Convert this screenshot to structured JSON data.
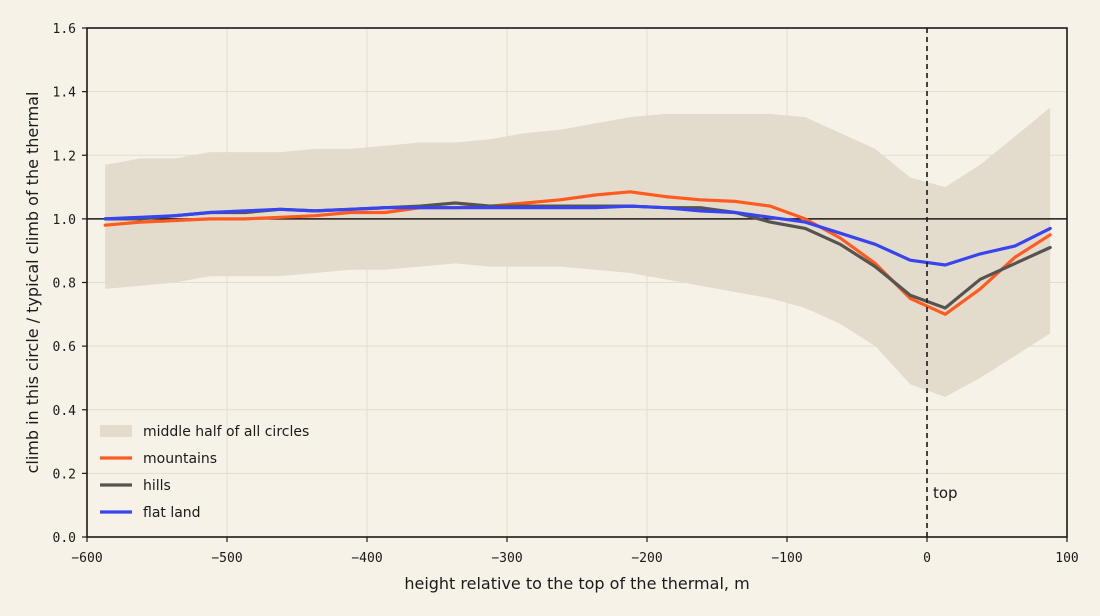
{
  "chart_data": {
    "type": "line",
    "xlabel": "height relative to the top of the thermal, m",
    "ylabel": "climb in this circle / typical climb of the thermal",
    "xlim": [
      -600,
      100
    ],
    "ylim": [
      0,
      1.6
    ],
    "xticks": [
      -600,
      -500,
      -400,
      -300,
      -200,
      -100,
      0,
      100
    ],
    "xtick_labels": [
      "−600",
      "−500",
      "−400",
      "−300",
      "−200",
      "−100",
      "0",
      "100"
    ],
    "yticks": [
      0,
      0.2,
      0.4,
      0.6,
      0.8,
      1.0,
      1.2,
      1.4,
      1.6
    ],
    "ytick_labels": [
      "0.0",
      "0.2",
      "0.4",
      "0.6",
      "0.8",
      "1.0",
      "1.2",
      "1.4",
      "1.6"
    ],
    "grid": true,
    "legend_position": "lower-left",
    "reference_line": {
      "y": 1.0,
      "color": "#1a1a1a"
    },
    "vline": {
      "x": 0,
      "label": "top",
      "style": "dashed"
    },
    "band": {
      "name": "middle half of all circles",
      "color": "#e3dccc",
      "x": [
        -587,
        -562,
        -537,
        -512,
        -487,
        -462,
        -437,
        -412,
        -387,
        -362,
        -337,
        -312,
        -287,
        -262,
        -237,
        -212,
        -187,
        -162,
        -137,
        -112,
        -87,
        -62,
        -37,
        -12,
        13,
        38,
        63,
        88
      ],
      "upper": [
        1.17,
        1.19,
        1.19,
        1.21,
        1.21,
        1.21,
        1.22,
        1.22,
        1.23,
        1.24,
        1.24,
        1.25,
        1.27,
        1.28,
        1.3,
        1.32,
        1.33,
        1.33,
        1.33,
        1.33,
        1.32,
        1.27,
        1.22,
        1.13,
        1.1,
        1.17,
        1.26,
        1.35
      ],
      "lower": [
        0.78,
        0.79,
        0.8,
        0.82,
        0.82,
        0.82,
        0.83,
        0.84,
        0.84,
        0.85,
        0.86,
        0.85,
        0.85,
        0.85,
        0.84,
        0.83,
        0.81,
        0.79,
        0.77,
        0.75,
        0.72,
        0.67,
        0.6,
        0.48,
        0.44,
        0.5,
        0.57,
        0.64
      ]
    },
    "series": [
      {
        "name": "mountains",
        "color": "#ff5a1f",
        "x": [
          -587,
          -562,
          -537,
          -512,
          -487,
          -462,
          -437,
          -412,
          -387,
          -362,
          -337,
          -312,
          -287,
          -262,
          -237,
          -212,
          -187,
          -162,
          -137,
          -112,
          -87,
          -62,
          -37,
          -12,
          13,
          38,
          63,
          88
        ],
        "values": [
          0.98,
          0.99,
          0.995,
          1.0,
          1.0,
          1.005,
          1.01,
          1.02,
          1.02,
          1.035,
          1.035,
          1.04,
          1.05,
          1.06,
          1.075,
          1.085,
          1.07,
          1.06,
          1.055,
          1.04,
          1.0,
          0.94,
          0.86,
          0.75,
          0.7,
          0.78,
          0.88,
          0.95
        ]
      },
      {
        "name": "hills",
        "color": "#555450",
        "x": [
          -587,
          -562,
          -537,
          -512,
          -487,
          -462,
          -437,
          -412,
          -387,
          -362,
          -337,
          -312,
          -287,
          -262,
          -237,
          -212,
          -187,
          -162,
          -137,
          -112,
          -87,
          -62,
          -37,
          -12,
          13,
          38,
          63,
          88
        ],
        "values": [
          1.0,
          1.0,
          1.01,
          1.02,
          1.02,
          1.03,
          1.025,
          1.03,
          1.035,
          1.04,
          1.05,
          1.04,
          1.04,
          1.04,
          1.04,
          1.04,
          1.035,
          1.035,
          1.02,
          0.99,
          0.97,
          0.92,
          0.85,
          0.76,
          0.72,
          0.81,
          0.86,
          0.91
        ]
      },
      {
        "name": "flat land",
        "color": "#3744f0",
        "x": [
          -587,
          -562,
          -537,
          -512,
          -487,
          -462,
          -437,
          -412,
          -387,
          -362,
          -337,
          -312,
          -287,
          -262,
          -237,
          -212,
          -187,
          -162,
          -137,
          -112,
          -87,
          -62,
          -37,
          -12,
          13,
          38,
          63,
          88
        ],
        "values": [
          1.0,
          1.005,
          1.01,
          1.02,
          1.025,
          1.03,
          1.025,
          1.03,
          1.035,
          1.035,
          1.035,
          1.035,
          1.035,
          1.035,
          1.035,
          1.04,
          1.035,
          1.025,
          1.02,
          1.005,
          0.99,
          0.955,
          0.92,
          0.87,
          0.855,
          0.89,
          0.915,
          0.97
        ]
      }
    ]
  }
}
